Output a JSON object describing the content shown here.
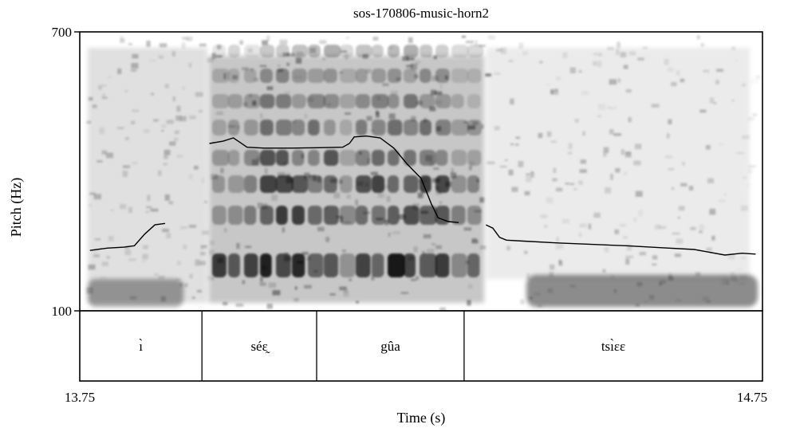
{
  "chart_data": {
    "type": "line",
    "title": "sos-170806-music-horn2",
    "xlabel": "Time (s)",
    "ylabel": "Pitch (Hz)",
    "xlim": [
      13.75,
      14.75
    ],
    "ylim": [
      100,
      700
    ],
    "x_tick_labels": [
      "13.75",
      "14.75"
    ],
    "y_tick_labels": [
      "700",
      "100"
    ],
    "background": "spectrogram",
    "grid": false,
    "series": [
      {
        "color": "#000000",
        "segments": [
          [
            [
              13.765,
              230
            ],
            [
              13.79,
              235
            ],
            [
              13.815,
              237
            ],
            [
              13.83,
              240
            ],
            [
              13.845,
              265
            ],
            [
              13.86,
              285
            ],
            [
              13.875,
              288
            ]
          ],
          [
            [
              13.94,
              460
            ],
            [
              13.96,
              465
            ],
            [
              13.975,
              472
            ],
            [
              13.985,
              462
            ],
            [
              13.995,
              452
            ],
            [
              14.02,
              450
            ],
            [
              14.06,
              450
            ],
            [
              14.1,
              451
            ],
            [
              14.135,
              452
            ],
            [
              14.145,
              460
            ],
            [
              14.152,
              474
            ],
            [
              14.17,
              476
            ],
            [
              14.19,
              472
            ],
            [
              14.21,
              450
            ],
            [
              14.23,
              415
            ],
            [
              14.25,
              385
            ],
            [
              14.265,
              330
            ],
            [
              14.275,
              300
            ],
            [
              14.29,
              292
            ],
            [
              14.305,
              290
            ]
          ],
          [
            [
              14.345,
              285
            ],
            [
              14.355,
              278
            ],
            [
              14.365,
              258
            ],
            [
              14.375,
              252
            ],
            [
              14.4,
              250
            ],
            [
              14.45,
              246
            ],
            [
              14.5,
              243
            ],
            [
              14.55,
              240
            ],
            [
              14.6,
              236
            ],
            [
              14.65,
              232
            ],
            [
              14.695,
              220
            ],
            [
              14.72,
              224
            ],
            [
              14.74,
              222
            ]
          ]
        ]
      }
    ],
    "tier": {
      "boundaries": [
        13.75,
        13.929,
        14.097,
        14.313,
        14.75
      ],
      "intervals": [
        {
          "start": 13.75,
          "end": 13.929,
          "label": "ı̀"
        },
        {
          "start": 13.929,
          "end": 14.097,
          "label": "séɛ̰"
        },
        {
          "start": 14.097,
          "end": 14.313,
          "label": "gûa"
        },
        {
          "start": 14.313,
          "end": 14.75,
          "label": "tsı̀ɛɛ"
        }
      ]
    }
  }
}
